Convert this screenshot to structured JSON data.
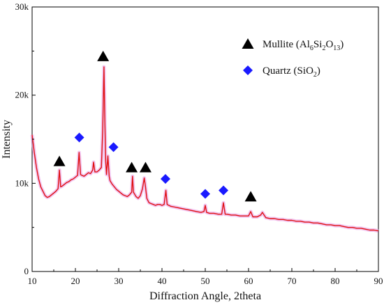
{
  "chart_data": {
    "type": "line",
    "title": "",
    "xlabel": "Diffraction Angle, 2theta",
    "ylabel": "Intensity",
    "xlim": [
      10,
      90
    ],
    "ylim": [
      0,
      30000
    ],
    "xticks": [
      10,
      20,
      30,
      40,
      50,
      60,
      70,
      80,
      90
    ],
    "xtick_labels": [
      "10",
      "20",
      "30",
      "40",
      "50",
      "60",
      "70",
      "80",
      "90"
    ],
    "yticks": [
      0,
      10000,
      20000,
      30000
    ],
    "ytick_labels": [
      "0",
      "10k",
      "20k",
      "30k"
    ],
    "grid": false,
    "legend_position": "top-right",
    "line_color": "#e01010",
    "line_glow_color": "#e8a0e8",
    "pattern_points": [
      [
        10,
        15500
      ],
      [
        10.5,
        13500
      ],
      [
        11,
        11800
      ],
      [
        11.5,
        10500
      ],
      [
        12,
        9600
      ],
      [
        12.5,
        9100
      ],
      [
        13,
        8600
      ],
      [
        13.5,
        8400
      ],
      [
        14,
        8500
      ],
      [
        14.5,
        8700
      ],
      [
        15,
        8900
      ],
      [
        15.5,
        9100
      ],
      [
        16.0,
        9400
      ],
      [
        16.3,
        11500
      ],
      [
        16.6,
        9600
      ],
      [
        17,
        9700
      ],
      [
        17.5,
        9900
      ],
      [
        18,
        10100
      ],
      [
        18.5,
        10200
      ],
      [
        19,
        10400
      ],
      [
        19.5,
        10500
      ],
      [
        20,
        10700
      ],
      [
        20.5,
        10900
      ],
      [
        20.85,
        13500
      ],
      [
        21.2,
        11000
      ],
      [
        21.5,
        10900
      ],
      [
        22,
        10800
      ],
      [
        22.5,
        11000
      ],
      [
        23,
        11200
      ],
      [
        23.5,
        11100
      ],
      [
        24,
        11500
      ],
      [
        24.2,
        12400
      ],
      [
        24.5,
        11300
      ],
      [
        25,
        11300
      ],
      [
        25.5,
        11500
      ],
      [
        26.0,
        11800
      ],
      [
        26.3,
        16000
      ],
      [
        26.6,
        23200
      ],
      [
        26.8,
        17000
      ],
      [
        27.0,
        12500
      ],
      [
        27.2,
        11000
      ],
      [
        27.5,
        13100
      ],
      [
        27.8,
        10800
      ],
      [
        28,
        10300
      ],
      [
        28.5,
        9900
      ],
      [
        29,
        9600
      ],
      [
        29.5,
        9300
      ],
      [
        30,
        9100
      ],
      [
        30.5,
        8900
      ],
      [
        31,
        8700
      ],
      [
        31.5,
        8600
      ],
      [
        32,
        8500
      ],
      [
        32.5,
        8700
      ],
      [
        33.0,
        9000
      ],
      [
        33.2,
        10800
      ],
      [
        33.4,
        9000
      ],
      [
        34,
        8500
      ],
      [
        34.5,
        8300
      ],
      [
        35,
        8600
      ],
      [
        35.5,
        9400
      ],
      [
        35.9,
        10600
      ],
      [
        36.2,
        9600
      ],
      [
        36.5,
        8300
      ],
      [
        37,
        7800
      ],
      [
        37.5,
        7700
      ],
      [
        38,
        7600
      ],
      [
        38.5,
        7500
      ],
      [
        39,
        7600
      ],
      [
        39.5,
        7600
      ],
      [
        40,
        7500
      ],
      [
        40.5,
        7600
      ],
      [
        40.9,
        9200
      ],
      [
        41.2,
        7600
      ],
      [
        42,
        7400
      ],
      [
        43,
        7300
      ],
      [
        44,
        7200
      ],
      [
        45,
        7100
      ],
      [
        46,
        7000
      ],
      [
        47,
        6900
      ],
      [
        48,
        6800
      ],
      [
        49,
        6700
      ],
      [
        49.7,
        6800
      ],
      [
        50.0,
        7500
      ],
      [
        50.3,
        6700
      ],
      [
        51,
        6600
      ],
      [
        52,
        6600
      ],
      [
        53,
        6500
      ],
      [
        53.8,
        6500
      ],
      [
        54.2,
        7800
      ],
      [
        54.6,
        6500
      ],
      [
        55,
        6500
      ],
      [
        56,
        6400
      ],
      [
        57,
        6400
      ],
      [
        58,
        6300
      ],
      [
        59,
        6300
      ],
      [
        60,
        6300
      ],
      [
        60.5,
        6800
      ],
      [
        61,
        6200
      ],
      [
        62,
        6200
      ],
      [
        62.8,
        6400
      ],
      [
        63.2,
        6700
      ],
      [
        64,
        6100
      ],
      [
        65,
        6000
      ],
      [
        66,
        6000
      ],
      [
        67,
        5900
      ],
      [
        68,
        5900
      ],
      [
        69,
        5800
      ],
      [
        70,
        5800
      ],
      [
        71,
        5700
      ],
      [
        72,
        5700
      ],
      [
        73,
        5600
      ],
      [
        74,
        5600
      ],
      [
        75,
        5500
      ],
      [
        76,
        5500
      ],
      [
        77,
        5400
      ],
      [
        78,
        5300
      ],
      [
        79,
        5300
      ],
      [
        80,
        5200
      ],
      [
        81,
        5200
      ],
      [
        82,
        5100
      ],
      [
        83,
        5000
      ],
      [
        84,
        5000
      ],
      [
        85,
        4900
      ],
      [
        86,
        4900
      ],
      [
        87,
        4800
      ],
      [
        88,
        4700
      ],
      [
        89,
        4700
      ],
      [
        90,
        4600
      ]
    ],
    "markers": [
      {
        "phase": "mullite",
        "x": 16.3,
        "y": 12500
      },
      {
        "phase": "quartz",
        "x": 20.9,
        "y": 15200
      },
      {
        "phase": "mullite",
        "x": 26.4,
        "y": 24400
      },
      {
        "phase": "quartz",
        "x": 28.8,
        "y": 14100
      },
      {
        "phase": "mullite",
        "x": 33.0,
        "y": 11800
      },
      {
        "phase": "mullite",
        "x": 36.2,
        "y": 11800
      },
      {
        "phase": "quartz",
        "x": 40.8,
        "y": 10500
      },
      {
        "phase": "quartz",
        "x": 50.0,
        "y": 8800
      },
      {
        "phase": "quartz",
        "x": 54.2,
        "y": 9200
      },
      {
        "phase": "mullite",
        "x": 60.5,
        "y": 8500
      }
    ],
    "legend": [
      {
        "phase": "mullite",
        "marker": "triangle",
        "color": "#000000",
        "label_parts": [
          {
            "t": "Mullite (Al",
            "s": ""
          },
          {
            "t": "6",
            "s": "sub"
          },
          {
            "t": "Si",
            "s": ""
          },
          {
            "t": "2",
            "s": "sub"
          },
          {
            "t": "O",
            "s": ""
          },
          {
            "t": "13",
            "s": "sub"
          },
          {
            "t": ")",
            "s": ""
          }
        ]
      },
      {
        "phase": "quartz",
        "marker": "diamond",
        "color": "#1a1aff",
        "label_parts": [
          {
            "t": "Quartz (SiO",
            "s": ""
          },
          {
            "t": "2",
            "s": "sub"
          },
          {
            "t": ")",
            "s": ""
          }
        ]
      }
    ]
  }
}
